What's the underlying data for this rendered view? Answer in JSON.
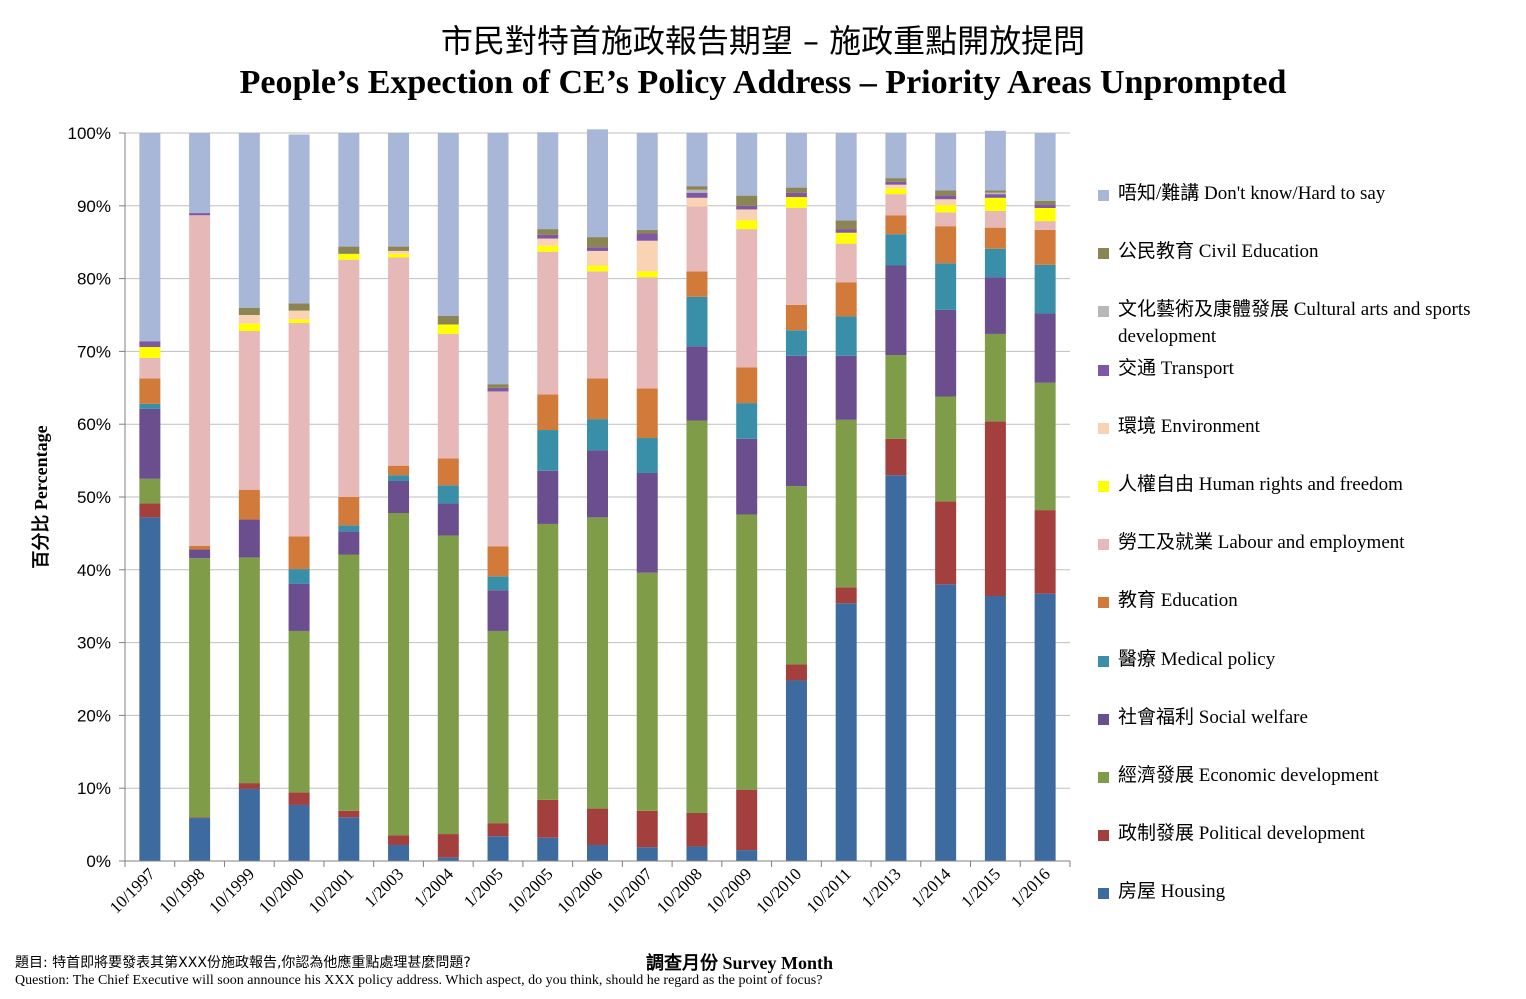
{
  "title_zh": "市民對特首施政報告期望 – 施政重點開放提問",
  "title_en": "People’s Expection of CE’s Policy Address – Priority Areas Unprompted",
  "footnote_zh": "題目: 特首即將要發表其第XXX份施政報告,你認為他應重點處理甚麼問題?",
  "footnote_en": "Question: The Chief Executive will soon announce his XXX policy address. Which aspect, do you think, should he regard as the point of focus?",
  "chart_data": {
    "type": "bar",
    "stacked": true,
    "xlabel": "調查月份 Survey Month",
    "ylabel": "百分比 Percentage",
    "ylim": [
      0,
      100
    ],
    "yticks": [
      "0%",
      "10%",
      "20%",
      "30%",
      "40%",
      "50%",
      "60%",
      "70%",
      "80%",
      "90%",
      "100%"
    ],
    "grid": true,
    "legend_position": "right",
    "categories": [
      "10/1997",
      "10/1998",
      "10/1999",
      "10/2000",
      "10/2001",
      "1/2003",
      "1/2004",
      "1/2005",
      "10/2005",
      "10/2006",
      "10/2007",
      "10/2008",
      "10/2009",
      "10/2010",
      "10/2011",
      "1/2013",
      "1/2014",
      "1/2015",
      "1/2016"
    ],
    "series": [
      {
        "name": "房屋 Housing",
        "color": "#3E6B9F",
        "values": [
          47.2,
          5.9,
          9.9,
          7.7,
          6.0,
          2.2,
          0.5,
          3.4,
          3.2,
          2.2,
          1.9,
          2.0,
          1.5,
          24.8,
          35.4,
          53.0,
          38.0,
          36.4,
          36.7
        ]
      },
      {
        "name": "政制發展 Political development",
        "color": "#A33F3D",
        "values": [
          1.9,
          0.1,
          0.8,
          1.7,
          0.9,
          1.3,
          3.2,
          1.8,
          5.2,
          5.0,
          5.0,
          4.6,
          8.3,
          2.2,
          2.2,
          5.0,
          11.4,
          24.0,
          11.5
        ]
      },
      {
        "name": "經濟發展 Economic development",
        "color": "#7F9C48",
        "values": [
          3.4,
          35.6,
          31.0,
          22.2,
          35.2,
          44.3,
          41.0,
          26.4,
          37.9,
          40.0,
          32.7,
          53.9,
          37.8,
          24.5,
          23.0,
          11.5,
          14.4,
          12.0,
          17.5
        ]
      },
      {
        "name": "社會福利 Social welfare",
        "color": "#6A4E8E",
        "values": [
          9.6,
          1.2,
          5.2,
          6.5,
          3.2,
          4.4,
          4.4,
          5.6,
          7.3,
          9.2,
          13.7,
          10.2,
          10.4,
          17.9,
          8.8,
          12.3,
          11.9,
          7.8,
          9.5
        ]
      },
      {
        "name": "醫療 Medical policy",
        "color": "#3A8FA8",
        "values": [
          0.7,
          0.0,
          0.0,
          2.0,
          0.8,
          0.8,
          2.5,
          1.9,
          5.6,
          4.3,
          4.8,
          6.8,
          4.9,
          3.5,
          5.4,
          4.3,
          6.4,
          3.9,
          6.7
        ]
      },
      {
        "name": "教育 Education",
        "color": "#D17A3A",
        "values": [
          3.5,
          0.5,
          4.1,
          4.5,
          3.9,
          1.3,
          3.7,
          4.1,
          4.9,
          5.6,
          6.8,
          3.5,
          4.9,
          3.5,
          4.7,
          2.6,
          5.1,
          2.9,
          4.8
        ]
      },
      {
        "name": "勞工及就業 Labour and employment",
        "color": "#E6B9B8",
        "values": [
          2.8,
          45.4,
          21.8,
          29.3,
          32.6,
          28.6,
          17.1,
          21.3,
          19.6,
          14.7,
          15.3,
          8.9,
          19.0,
          13.3,
          5.3,
          2.9,
          1.9,
          2.3,
          1.2
        ]
      },
      {
        "name": "人權自由 Human rights and freedom",
        "color": "#FFFF00",
        "values": [
          1.5,
          0.0,
          1.0,
          0.5,
          0.8,
          0.5,
          1.3,
          0.0,
          0.8,
          0.8,
          0.8,
          0.0,
          1.2,
          1.5,
          1.5,
          0.8,
          1.0,
          1.8,
          1.8
        ]
      },
      {
        "name": "環境 Environment",
        "color": "#FAD3B4",
        "values": [
          0.0,
          0.0,
          1.2,
          1.2,
          0.0,
          0.4,
          0.0,
          0.0,
          1.0,
          2.0,
          4.2,
          1.2,
          1.5,
          0.0,
          0.0,
          0.5,
          0.8,
          0.0,
          0.0
        ]
      },
      {
        "name": "交通 Transport",
        "color": "#7E57A5",
        "values": [
          0.8,
          0.3,
          0.0,
          0.0,
          0.0,
          0.0,
          0.0,
          0.5,
          0.5,
          0.5,
          1.0,
          0.7,
          0.5,
          0.6,
          0.5,
          0.4,
          0.5,
          0.5,
          0.5
        ]
      },
      {
        "name": "文化藝術及康體發展 Cultural arts and sports development",
        "color": "#B8B8B8",
        "values": [
          0.0,
          0.0,
          0.0,
          0.0,
          0.0,
          0.0,
          0.0,
          0.0,
          0.0,
          0.0,
          0.0,
          0.4,
          0.0,
          0.0,
          0.0,
          0.0,
          0.0,
          0.2,
          0.0
        ]
      },
      {
        "name": "公民教育 Civil Education",
        "color": "#8B8553",
        "values": [
          0.0,
          0.0,
          1.0,
          1.0,
          1.0,
          0.6,
          1.2,
          0.5,
          0.8,
          1.4,
          0.5,
          0.5,
          1.4,
          0.7,
          1.2,
          0.5,
          0.7,
          0.3,
          0.5
        ]
      },
      {
        "name": "唔知/難講 Don't know/Hard to say",
        "color": "#A8B7D8",
        "values": [
          28.6,
          11.0,
          24.0,
          23.2,
          15.6,
          15.6,
          25.1,
          34.5,
          13.3,
          14.8,
          13.3,
          7.3,
          8.6,
          7.5,
          12.0,
          6.2,
          7.9,
          8.2,
          9.3
        ]
      }
    ]
  }
}
